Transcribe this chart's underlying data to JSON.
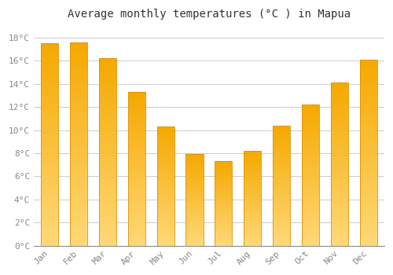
{
  "title": "Average monthly temperatures (°C ) in Mapua",
  "months": [
    "Jan",
    "Feb",
    "Mar",
    "Apr",
    "May",
    "Jun",
    "Jul",
    "Aug",
    "Sep",
    "Oct",
    "Nov",
    "Dec"
  ],
  "values": [
    17.5,
    17.6,
    16.2,
    13.3,
    10.3,
    7.9,
    7.3,
    8.2,
    10.4,
    12.2,
    14.1,
    16.1
  ],
  "bar_color_top": "#F5A800",
  "bar_color_bottom": "#FFD878",
  "bar_edge_color": "#E09000",
  "background_color": "#FFFFFF",
  "grid_color": "#CCCCCC",
  "tick_color": "#888888",
  "title_color": "#333333",
  "ylim": [
    0,
    19
  ],
  "yticks": [
    0,
    2,
    4,
    6,
    8,
    10,
    12,
    14,
    16,
    18
  ],
  "ytick_labels": [
    "0°C",
    "2°C",
    "4°C",
    "6°C",
    "8°C",
    "10°C",
    "12°C",
    "14°C",
    "16°C",
    "18°C"
  ],
  "title_fontsize": 10,
  "tick_fontsize": 8,
  "bar_width": 0.6,
  "n_grad": 200
}
